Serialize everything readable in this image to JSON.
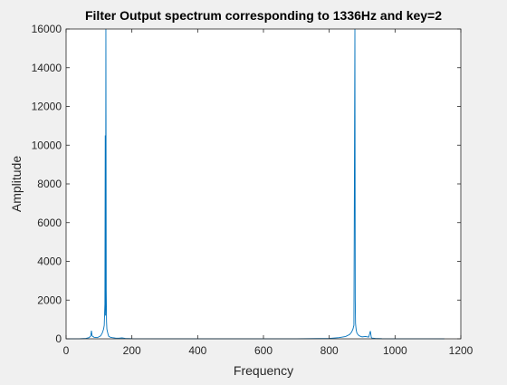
{
  "chart_data": {
    "type": "line",
    "title": "Filter Output spectrum corresponding to 1336Hz and key=2",
    "xlabel": "Frequency",
    "ylabel": "Amplitude",
    "xlim": [
      0,
      1200
    ],
    "ylim": [
      0,
      16000
    ],
    "xticks": [
      0,
      200,
      400,
      600,
      800,
      1000,
      1200
    ],
    "yticks": [
      0,
      2000,
      4000,
      6000,
      8000,
      10000,
      12000,
      14000,
      16000
    ],
    "grid": false,
    "legend": "none",
    "series": [
      {
        "color": "#0072bd",
        "x": [
          0,
          40,
          60,
          70,
          75,
          77,
          79,
          85,
          95,
          105,
          110,
          114,
          116,
          118,
          119,
          120,
          121,
          122,
          123,
          124,
          126,
          128,
          130,
          135,
          140,
          150,
          160,
          170,
          180,
          200,
          300,
          400,
          500,
          600,
          700,
          800,
          830,
          850,
          862,
          868,
          872,
          875,
          878,
          879,
          880,
          881,
          882,
          884,
          888,
          892,
          900,
          910,
          920,
          925,
          928,
          930,
          940,
          960,
          1000,
          1100,
          1150
        ],
        "y": [
          0,
          5,
          20,
          60,
          150,
          420,
          150,
          80,
          60,
          150,
          300,
          500,
          700,
          1800,
          10500,
          1200,
          16000,
          2500,
          900,
          500,
          350,
          200,
          120,
          80,
          60,
          40,
          30,
          50,
          20,
          8,
          4,
          3,
          3,
          3,
          4,
          20,
          60,
          120,
          220,
          350,
          500,
          700,
          16000,
          2000,
          800,
          600,
          450,
          300,
          200,
          150,
          100,
          120,
          90,
          400,
          60,
          40,
          20,
          10,
          5,
          2,
          0
        ]
      }
    ]
  }
}
